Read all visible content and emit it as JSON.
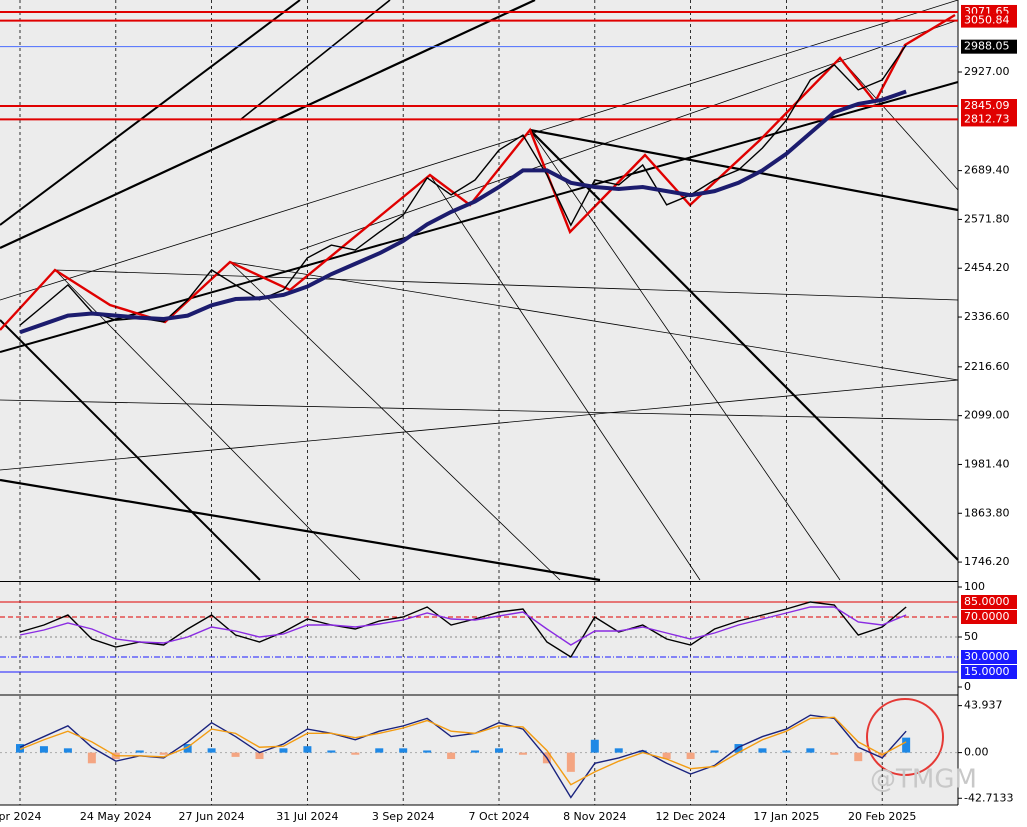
{
  "chart_data": [
    {
      "type": "line",
      "categories": [
        "pr 2024",
        null,
        null,
        null,
        "24 May 2024",
        null,
        null,
        null,
        "27 Jun 2024",
        null,
        null,
        null,
        "31 Jul 2024",
        null,
        null,
        null,
        "3 Sep 2024",
        null,
        null,
        null,
        "7 Oct 2024",
        null,
        null,
        null,
        "8 Nov 2024",
        null,
        null,
        null,
        "12 Dec 2024",
        null,
        null,
        null,
        "17 Jan 2025",
        null,
        null,
        null,
        "20 Feb 2025",
        null
      ],
      "series": [
        {
          "color": "#000000",
          "values": [
            2317,
            2365,
            2414,
            2349,
            2329,
            2334,
            2325,
            2378,
            2450,
            2414,
            2378,
            2402,
            2479,
            2510,
            2498,
            2541,
            2582,
            2672,
            2631,
            2667,
            2739,
            2775,
            2679,
            2558,
            2667,
            2655,
            2703,
            2607,
            2631,
            2667,
            2691,
            2744,
            2811,
            2908,
            2944,
            2884,
            2908,
            2992
          ]
        },
        {
          "color": "#1c1c6e",
          "values": [
            2300,
            2320,
            2340,
            2345,
            2340,
            2335,
            2332,
            2340,
            2365,
            2380,
            2382,
            2390,
            2410,
            2440,
            2465,
            2490,
            2520,
            2560,
            2590,
            2615,
            2650,
            2690,
            2690,
            2660,
            2650,
            2645,
            2650,
            2640,
            2630,
            2640,
            2660,
            2690,
            2730,
            2780,
            2830,
            2850,
            2860,
            2880
          ]
        }
      ],
      "ylim": [
        1703,
        3100.5
      ],
      "yticks": [
        {
          "value": 2927,
          "label": "2927.00"
        },
        {
          "value": 2689.4,
          "label": "2689.40"
        },
        {
          "value": 2571.8,
          "label": "2571.80"
        },
        {
          "value": 2454.2,
          "label": "2454.20"
        },
        {
          "value": 2336.6,
          "label": "2336.60"
        },
        {
          "value": 2216.6,
          "label": "2216.60"
        },
        {
          "value": 2099,
          "label": "2099.00"
        },
        {
          "value": 1981.4,
          "label": "1981.40"
        },
        {
          "value": 1863.8,
          "label": "1863.80"
        },
        {
          "value": 1746.2,
          "label": "1746.20"
        }
      ],
      "levels": [
        3071.65,
        3050.84,
        2988.05,
        2845.09,
        2812.73
      ],
      "level_colors": [
        "#e00000",
        "#e00000",
        "#000000",
        "#e00000",
        "#e00000"
      ],
      "grid": true
    },
    {
      "type": "line",
      "series": [
        {
          "color": "#000000",
          "values": [
            55,
            62,
            72,
            48,
            40,
            45,
            42,
            58,
            72,
            52,
            45,
            55,
            68,
            62,
            58,
            66,
            70,
            80,
            62,
            68,
            75,
            78,
            45,
            30,
            70,
            55,
            62,
            48,
            42,
            58,
            66,
            72,
            78,
            85,
            82,
            52,
            60,
            80
          ]
        },
        {
          "color": "#8a2be2",
          "values": [
            52,
            57,
            64,
            58,
            48,
            45,
            44,
            50,
            60,
            56,
            50,
            53,
            62,
            62,
            60,
            63,
            67,
            74,
            68,
            67,
            71,
            75,
            58,
            42,
            56,
            56,
            60,
            54,
            48,
            54,
            62,
            68,
            74,
            80,
            80,
            65,
            62,
            72
          ]
        }
      ],
      "ylim": [
        -6,
        104
      ],
      "yticks": [
        100,
        {
          "value": 85,
          "label": "85.0000"
        },
        {
          "value": 70,
          "label": "70.0000"
        },
        50,
        {
          "value": 30,
          "label": "30.0000"
        },
        {
          "value": 15,
          "label": "15.0000"
        },
        0
      ],
      "ytick_colors": [
        null,
        "#e00000",
        "#e00000",
        null,
        "#1a1aff",
        "#1a1aff",
        null
      ]
    },
    {
      "type": "line",
      "series": [
        {
          "type": "bar",
          "color": "#1e88e5",
          "negative_color": "#f4a582",
          "values": [
            8,
            6,
            4,
            -10,
            -6,
            2,
            -2,
            8,
            4,
            -4,
            -6,
            4,
            6,
            2,
            -2,
            4,
            4,
            2,
            -6,
            2,
            4,
            -2,
            -10,
            -18,
            12,
            4,
            2,
            -6,
            -6,
            2,
            8,
            4,
            2,
            4,
            -2,
            -8,
            -4,
            14
          ]
        },
        {
          "color": "#1a237e",
          "values": [
            5,
            15,
            25,
            5,
            -8,
            -3,
            -5,
            10,
            28,
            15,
            0,
            8,
            22,
            18,
            12,
            20,
            25,
            32,
            15,
            18,
            28,
            22,
            -5,
            -42,
            -10,
            -5,
            2,
            -10,
            -20,
            -12,
            5,
            15,
            22,
            35,
            32,
            5,
            -5,
            20
          ]
        },
        {
          "color": "#f39c12",
          "values": [
            3,
            12,
            20,
            10,
            -3,
            -3,
            -4,
            5,
            22,
            18,
            5,
            6,
            18,
            18,
            14,
            18,
            23,
            30,
            20,
            18,
            25,
            24,
            2,
            -30,
            -18,
            -8,
            0,
            -6,
            -15,
            -13,
            0,
            12,
            20,
            32,
            33,
            10,
            -2,
            10
          ]
        }
      ],
      "ylim": [
        -49,
        52
      ],
      "yticks": [
        43.937,
        {
          "value": 0,
          "label": "0.00"
        },
        -42.7133
      ]
    }
  ],
  "watermark": "@TMGM"
}
